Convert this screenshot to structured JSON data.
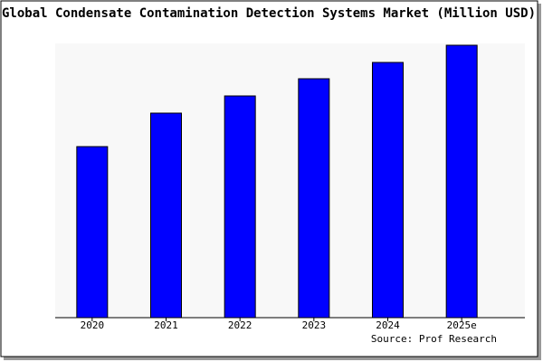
{
  "chart_data": {
    "type": "bar",
    "title": "Global Condensate Contamination Detection Systems Market (Million USD)",
    "categories": [
      "2020",
      "2021",
      "2022",
      "2023",
      "2024",
      "2025e"
    ],
    "values": [
      189,
      226,
      245,
      264,
      282,
      301
    ],
    "color": "#0000ff",
    "ylim": [
      0,
      301
    ],
    "source": "Source: Prof Research"
  }
}
